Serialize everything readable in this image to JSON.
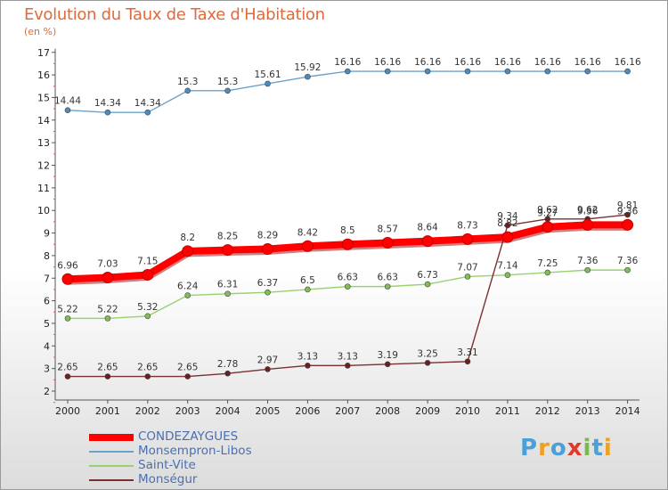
{
  "title": "Evolution du Taux de Taxe d'Habitation",
  "unit_label": "(en %)",
  "logo": {
    "text": "Proxiti",
    "letters": [
      "P",
      "r",
      "o",
      "x",
      "i",
      "t",
      "i"
    ],
    "colors": [
      "#4aa0d8",
      "#f0a020",
      "#4aa0d8",
      "#e23a2a",
      "#7ab850",
      "#4aa0d8",
      "#f0a020"
    ]
  },
  "chart_data": {
    "type": "line",
    "title": "Evolution du Taux de Taxe d'Habitation",
    "ylabel": "(en %)",
    "xlabel": "",
    "x": [
      "2000",
      "2001",
      "2002",
      "2003",
      "2004",
      "2005",
      "2006",
      "2007",
      "2008",
      "2009",
      "2010",
      "2011",
      "2012",
      "2013",
      "2014"
    ],
    "ylim": [
      2,
      17
    ],
    "yticks": [
      "2",
      "3",
      "4",
      "5",
      "6",
      "7",
      "8",
      "9",
      "10",
      "11",
      "12",
      "13",
      "14",
      "15",
      "16",
      "17"
    ],
    "grid": false,
    "legend_position": "bottom-left",
    "series": [
      {
        "name": "Monsempron-Libos",
        "color": "#6aa2cc",
        "marker": "#4a8bc0",
        "weight": "thin",
        "values": [
          14.44,
          14.34,
          14.34,
          15.3,
          15.3,
          15.61,
          15.92,
          16.16,
          16.16,
          16.16,
          16.16,
          16.16,
          16.16,
          16.16,
          16.16
        ],
        "labels": [
          "14.44",
          "14.34",
          "14.34",
          "15.3",
          "15.3",
          "15.61",
          "15.92",
          "16.16",
          "16.16",
          "16.16",
          "16.16",
          "16.16",
          "16.16",
          "16.16",
          "16.16"
        ]
      },
      {
        "name": "Saint-Vite",
        "color": "#99d070",
        "marker": "#7fc050",
        "weight": "thin",
        "values": [
          5.22,
          5.22,
          5.32,
          6.24,
          6.31,
          6.37,
          6.5,
          6.63,
          6.63,
          6.73,
          7.07,
          7.14,
          7.25,
          7.36,
          7.36
        ],
        "labels": [
          "5.22",
          "5.22",
          "5.32",
          "6.24",
          "6.31",
          "6.37",
          "6.5",
          "6.63",
          "6.63",
          "6.73",
          "7.07",
          "7.14",
          "7.25",
          "7.36",
          "7.36"
        ]
      },
      {
        "name": "Monségur",
        "color": "#7a3030",
        "marker": "#6a2020",
        "weight": "thin",
        "values": [
          2.65,
          2.65,
          2.65,
          2.65,
          2.78,
          2.97,
          3.13,
          3.13,
          3.19,
          3.25,
          3.31,
          9.34,
          9.62,
          9.62,
          9.81
        ],
        "labels": [
          "2.65",
          "2.65",
          "2.65",
          "2.65",
          "2.78",
          "2.97",
          "3.13",
          "3.13",
          "3.19",
          "3.25",
          "3.31",
          "9.34",
          "9.62",
          "9.62",
          "9.81"
        ]
      },
      {
        "name": "CONDEZAYGUES",
        "color": "#ff0000",
        "marker": "#ff0000",
        "weight": "thick",
        "values": [
          6.96,
          7.03,
          7.15,
          8.2,
          8.25,
          8.29,
          8.42,
          8.5,
          8.57,
          8.64,
          8.73,
          8.82,
          9.27,
          9.36,
          9.36
        ],
        "labels": [
          "6.96",
          "7.03",
          "7.15",
          "8.2",
          "8.25",
          "8.29",
          "8.42",
          "8.5",
          "8.57",
          "8.64",
          "8.73",
          "8.82",
          "9.27",
          "9.36",
          "9.36"
        ]
      }
    ],
    "legend": [
      "CONDEZAYGUES",
      "Monsempron-Libos",
      "Saint-Vite",
      "Monségur"
    ]
  }
}
